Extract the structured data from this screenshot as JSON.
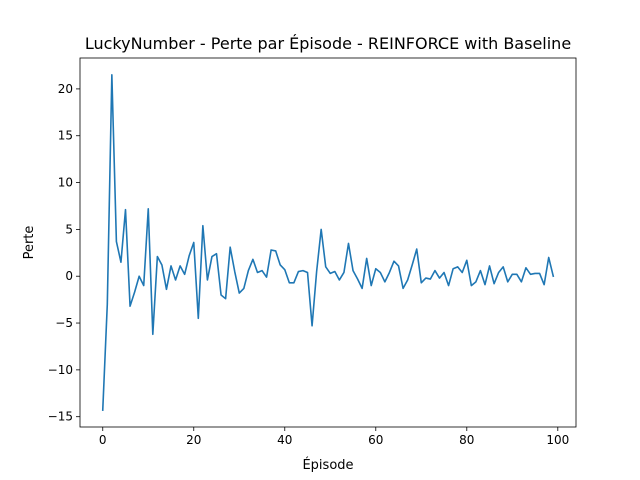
{
  "chart_data": {
    "type": "line",
    "title": "LuckyNumber - Perte par Épisode - REINFORCE with Baseline",
    "xlabel": "Épisode",
    "ylabel": "Perte",
    "xlim": [
      -5,
      104
    ],
    "ylim": [
      -16.1,
      23.3
    ],
    "xticks": [
      0,
      20,
      40,
      60,
      80,
      100
    ],
    "yticks": [
      -15,
      -10,
      -5,
      0,
      5,
      10,
      15,
      20
    ],
    "grid": false,
    "legend": "none",
    "series": [
      {
        "color": "#1f77b4",
        "x": [
          0,
          1,
          2,
          3,
          4,
          5,
          6,
          7,
          8,
          9,
          10,
          11,
          12,
          13,
          14,
          15,
          16,
          17,
          18,
          19,
          20,
          21,
          22,
          23,
          24,
          25,
          26,
          27,
          28,
          29,
          30,
          31,
          32,
          33,
          34,
          35,
          36,
          37,
          38,
          39,
          40,
          41,
          42,
          43,
          44,
          45,
          46,
          47,
          48,
          49,
          50,
          51,
          52,
          53,
          54,
          55,
          56,
          57,
          58,
          59,
          60,
          61,
          62,
          63,
          64,
          65,
          66,
          67,
          68,
          69,
          70,
          71,
          72,
          73,
          74,
          75,
          76,
          77,
          78,
          79,
          80,
          81,
          82,
          83,
          84,
          85,
          86,
          87,
          88,
          89,
          90,
          91,
          92,
          93,
          94,
          95,
          96,
          97,
          98,
          99
        ],
        "values": [
          -14.3,
          -3,
          21.5,
          3.7,
          1.5,
          7.1,
          -3.2,
          -1.7,
          0,
          -1,
          7.2,
          -6.2,
          2.1,
          1.2,
          -1.4,
          1.1,
          -0.4,
          1.1,
          0.2,
          2.2,
          3.6,
          -4.5,
          5.4,
          -0.4,
          2.1,
          2.4,
          -2,
          -2.4,
          3.1,
          0.5,
          -1.8,
          -1.3,
          0.6,
          1.8,
          0.4,
          0.6,
          -0.1,
          2.8,
          2.7,
          1.2,
          0.7,
          -0.7,
          -0.7,
          0.5,
          0.6,
          0.4,
          -5.3,
          0.5,
          5,
          1,
          0.3,
          0.5,
          -0.4,
          0.4,
          3.5,
          0.6,
          -0.3,
          -1.3,
          1.9,
          -1,
          0.8,
          0.4,
          -0.6,
          0.4,
          1.6,
          1.1,
          -1.3,
          -0.4,
          1.2,
          2.9,
          -0.7,
          -0.2,
          -0.3,
          0.6,
          -0.2,
          0.4,
          -1,
          0.8,
          1,
          0.4,
          1.7,
          -1,
          -0.6,
          0.6,
          -0.9,
          1.1,
          -0.8,
          0.4,
          1,
          -0.6,
          0.2,
          0.2,
          -0.6,
          0.9,
          0.2,
          0.3,
          0.3,
          -0.9,
          2,
          0
        ]
      }
    ]
  }
}
